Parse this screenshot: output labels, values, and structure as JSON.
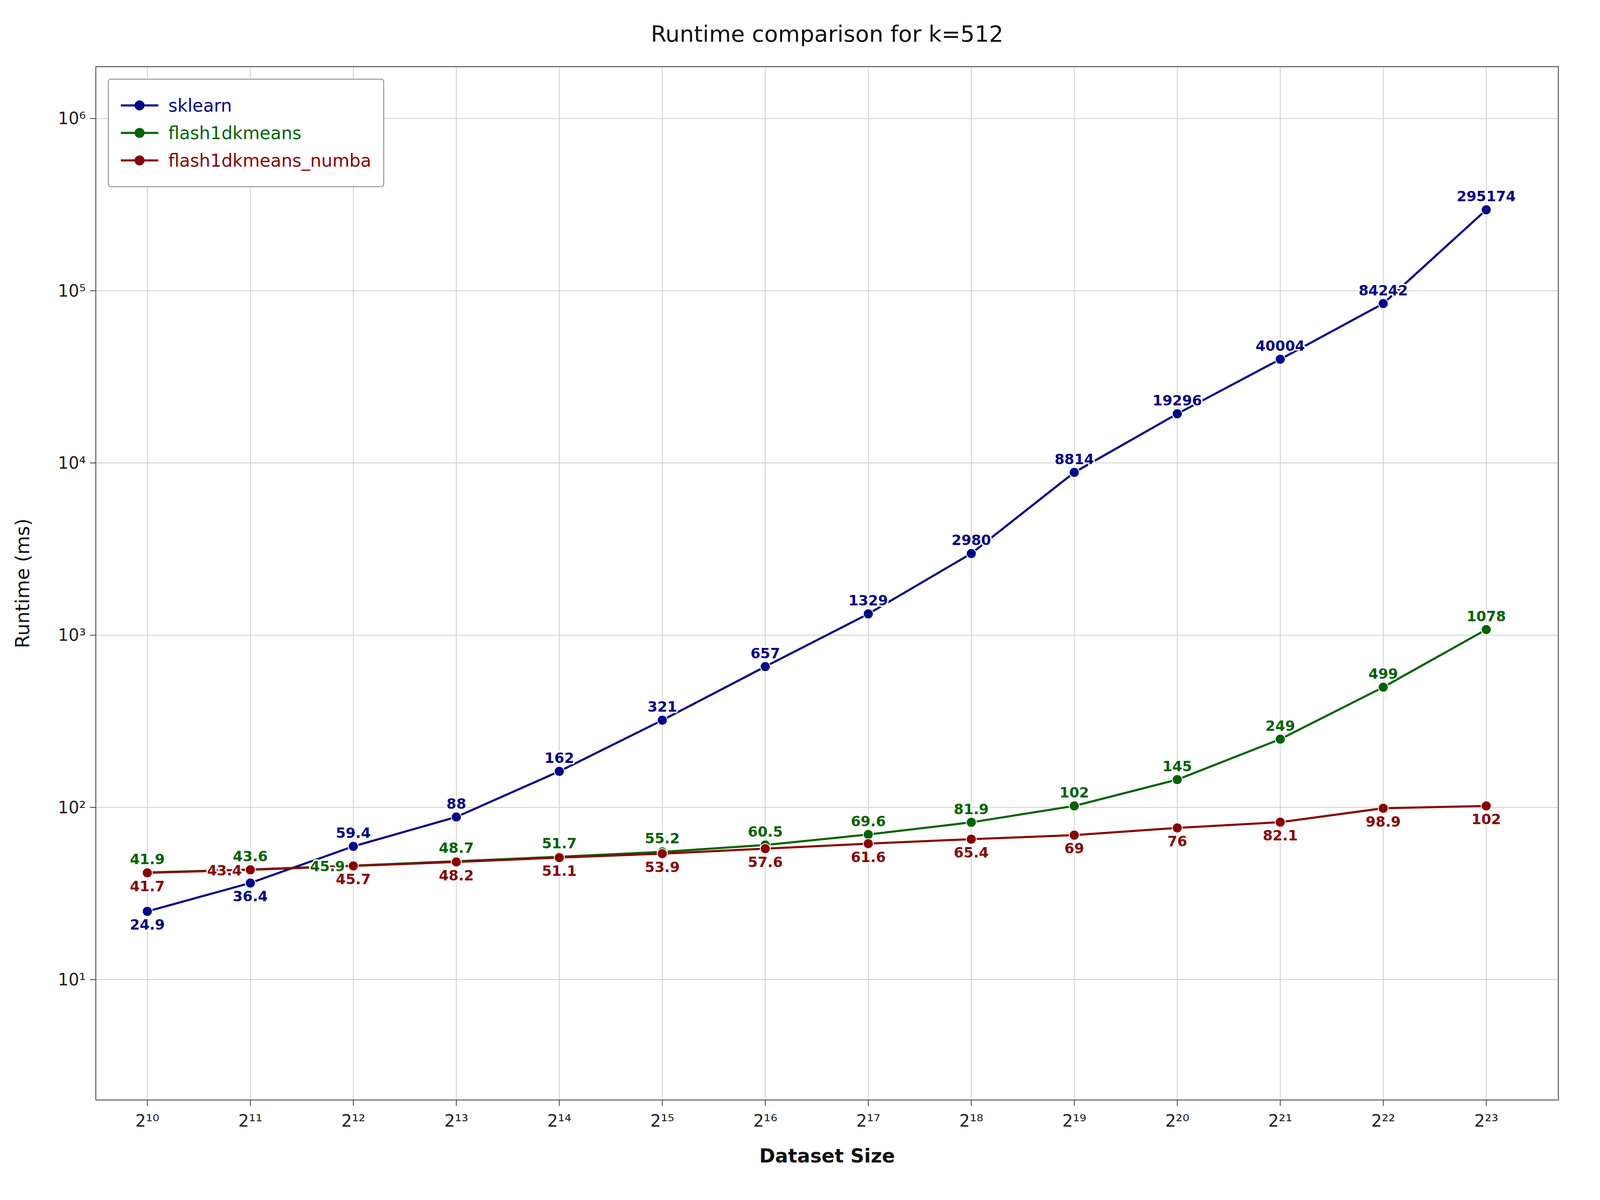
{
  "chart_data": {
    "type": "line",
    "title": "Runtime comparison for k=512",
    "x_label": "Dataset Size",
    "y_label": "Runtime (ms)",
    "x": [
      1024,
      2048,
      4096,
      8192,
      16384,
      32768,
      65536,
      131072,
      262144,
      524288,
      1048576,
      2097152,
      4194304,
      8388608
    ],
    "series": [
      {
        "name": "sklearn",
        "color": "#00008B",
        "marker": "circle",
        "values": [
          24.9,
          36.4,
          59.4,
          88.0,
          162,
          321,
          657,
          1329,
          2980,
          8814,
          19296,
          40004,
          84242,
          295174
        ]
      },
      {
        "name": "flash1dkmeans",
        "color": "#006400",
        "marker": "circle",
        "values": [
          41.9,
          43.6,
          45.9,
          48.7,
          51.7,
          55.2,
          60.5,
          69.6,
          81.9,
          102,
          145,
          249,
          499,
          1078
        ]
      },
      {
        "name": "flash1dkmeans_numba",
        "color": "#8B0000",
        "marker": "circle",
        "values": [
          41.7,
          43.4,
          45.7,
          48.2,
          51.1,
          53.9,
          57.6,
          61.6,
          65.4,
          69.0,
          76.0,
          82.1,
          98.9,
          102
        ]
      }
    ],
    "log": true,
    "xlim": [
      724.077344,
      13627333.9
    ],
    "xticks": [
      {
        "value": 1024,
        "label": "2¹⁰"
      },
      {
        "value": 2048,
        "label": "2¹¹"
      },
      {
        "value": 4096,
        "label": "2¹²"
      },
      {
        "value": 8192,
        "label": "2¹³"
      },
      {
        "value": 16384,
        "label": "2¹⁴"
      },
      {
        "value": 32768,
        "label": "2¹⁵"
      },
      {
        "value": 65536,
        "label": "2¹⁶"
      },
      {
        "value": 131072,
        "label": "2¹⁷"
      },
      {
        "value": 262144,
        "label": "2¹⁸"
      },
      {
        "value": 524288,
        "label": "2¹⁹"
      },
      {
        "value": 1048576,
        "label": "2²⁰"
      },
      {
        "value": 2097152,
        "label": "2²¹"
      },
      {
        "value": 4194304,
        "label": "2²²"
      },
      {
        "value": 8388608,
        "label": "2²³"
      }
    ],
    "ylim": [
      2,
      2000000
    ],
    "yticks": [
      {
        "value": 10,
        "label": "10¹"
      },
      {
        "value": 100,
        "label": "10²"
      },
      {
        "value": 1000,
        "label": "10³"
      },
      {
        "value": 10000,
        "label": "10⁴"
      },
      {
        "value": 100000,
        "label": "10⁵"
      },
      {
        "value": 1000000,
        "label": "10⁶"
      }
    ],
    "grid": true,
    "legend": "upper-left",
    "data_labels": true
  }
}
